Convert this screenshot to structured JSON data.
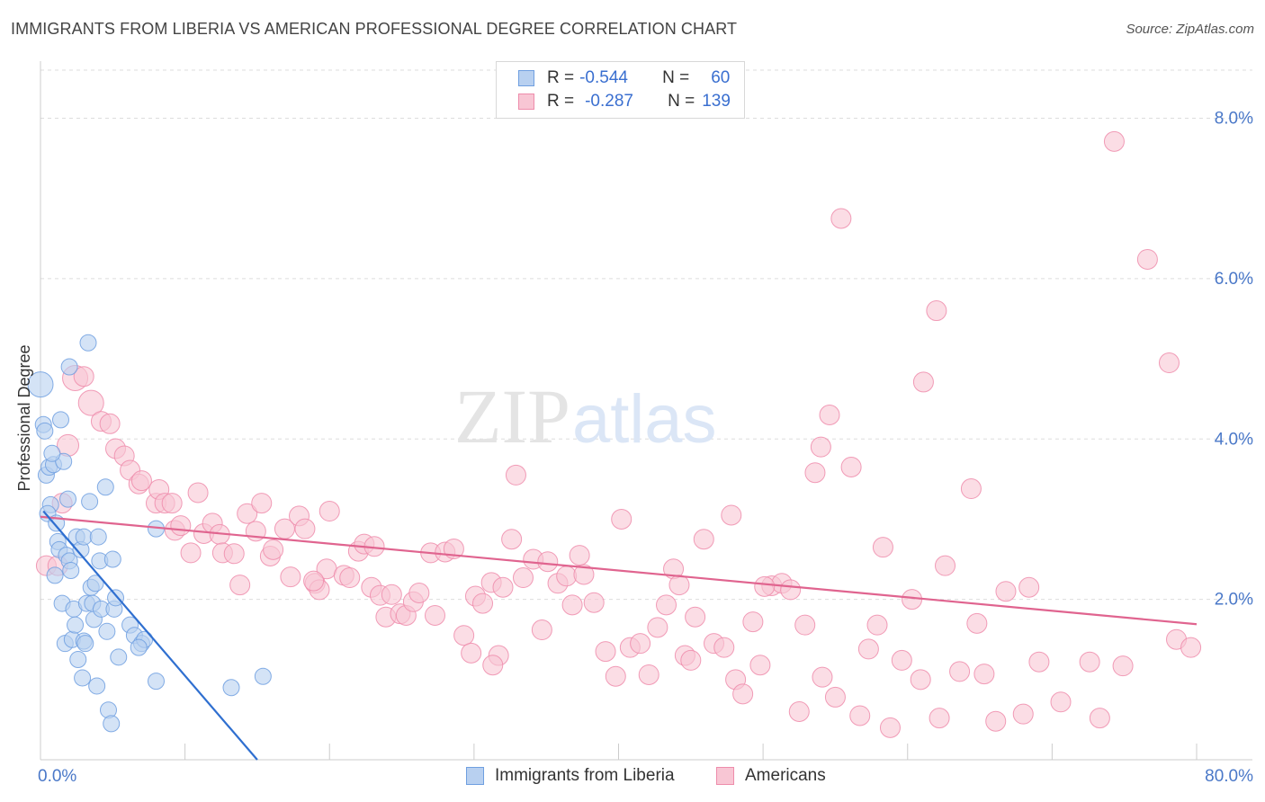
{
  "title": "IMMIGRANTS FROM LIBERIA VS AMERICAN PROFESSIONAL DEGREE CORRELATION CHART",
  "source": "Source: ZipAtlas.com",
  "watermark": {
    "zip": "ZIP",
    "atlas": "atlas"
  },
  "legend": {
    "rows": [
      {
        "r_label": "R =",
        "r_value": "-0.544",
        "n_label": "N =",
        "n_value": "60"
      },
      {
        "r_label": "R =",
        "r_value": "-0.287",
        "n_label": "N =",
        "n_value": "139"
      }
    ],
    "bottom": [
      "Immigrants from Liberia",
      "Americans"
    ]
  },
  "colors": {
    "liberia_fill": "#b8d0f0",
    "liberia_stroke": "#6f9fe0",
    "liberia_line": "#2f6fd0",
    "americans_fill": "#f8c6d4",
    "americans_stroke": "#ee8cab",
    "americans_line": "#e0648f",
    "axis_text": "#4a78c8",
    "grid": "#dddddd"
  },
  "chart_data": {
    "type": "scatter",
    "title": "IMMIGRANTS FROM LIBERIA VS AMERICAN PROFESSIONAL DEGREE CORRELATION CHART",
    "xlabel": "",
    "ylabel": "Professional Degree",
    "xlim": [
      0,
      80
    ],
    "ylim": [
      0,
      8.6
    ],
    "x_tick_labels": [
      "0.0%",
      "80.0%"
    ],
    "y_ticks": [
      2,
      4,
      6,
      8
    ],
    "y_tick_labels": [
      "2.0%",
      "4.0%",
      "6.0%",
      "8.0%"
    ],
    "series": [
      {
        "name": "Immigrants from Liberia",
        "R": -0.544,
        "N": 60,
        "trend": {
          "x0": 0.2,
          "y0": 3.1,
          "x1": 15.0,
          "y1": 0.0
        },
        "points": [
          [
            0.0,
            4.68,
            14
          ],
          [
            0.2,
            4.18,
            9
          ],
          [
            0.3,
            4.1,
            9
          ],
          [
            0.4,
            3.55,
            9
          ],
          [
            0.6,
            3.65,
            9
          ],
          [
            0.7,
            3.18,
            9
          ],
          [
            0.9,
            3.68,
            9
          ],
          [
            1.0,
            2.3,
            9
          ],
          [
            1.2,
            2.72,
            9
          ],
          [
            1.3,
            2.62,
            9
          ],
          [
            1.4,
            4.24,
            9
          ],
          [
            1.5,
            1.95,
            9
          ],
          [
            1.6,
            3.72,
            9
          ],
          [
            1.7,
            1.45,
            9
          ],
          [
            1.8,
            2.55,
            9
          ],
          [
            1.9,
            3.25,
            9
          ],
          [
            2.0,
            2.48,
            9
          ],
          [
            2.0,
            4.9,
            9
          ],
          [
            2.2,
            1.5,
            9
          ],
          [
            2.3,
            1.88,
            9
          ],
          [
            2.4,
            1.68,
            9
          ],
          [
            2.5,
            2.78,
            9
          ],
          [
            2.6,
            1.25,
            9
          ],
          [
            2.8,
            2.62,
            9
          ],
          [
            2.9,
            1.02,
            9
          ],
          [
            3.0,
            1.48,
            9
          ],
          [
            3.0,
            2.78,
            9
          ],
          [
            3.1,
            1.45,
            9
          ],
          [
            3.2,
            1.95,
            9
          ],
          [
            3.3,
            5.2,
            9
          ],
          [
            3.4,
            3.22,
            9
          ],
          [
            3.5,
            2.15,
            9
          ],
          [
            3.6,
            1.95,
            9
          ],
          [
            3.7,
            1.75,
            9
          ],
          [
            3.9,
            0.92,
            9
          ],
          [
            4.0,
            2.78,
            9
          ],
          [
            4.1,
            2.48,
            9
          ],
          [
            4.2,
            1.88,
            9
          ],
          [
            4.5,
            3.4,
            9
          ],
          [
            4.6,
            1.6,
            9
          ],
          [
            4.7,
            0.62,
            9
          ],
          [
            4.9,
            0.45,
            9
          ],
          [
            5.0,
            2.5,
            9
          ],
          [
            5.1,
            1.88,
            9
          ],
          [
            5.2,
            2.02,
            9
          ],
          [
            5.4,
            1.28,
            9
          ],
          [
            6.2,
            1.68,
            9
          ],
          [
            6.5,
            1.55,
            9
          ],
          [
            7.0,
            1.45,
            9
          ],
          [
            7.2,
            1.5,
            9
          ],
          [
            8.0,
            2.88,
            9
          ],
          [
            8.0,
            0.98,
            9
          ],
          [
            13.2,
            0.9,
            9
          ],
          [
            15.4,
            1.04,
            9
          ],
          [
            0.5,
            3.07,
            9
          ],
          [
            1.1,
            2.95,
            9
          ],
          [
            2.1,
            2.36,
            9
          ],
          [
            3.8,
            2.2,
            9
          ],
          [
            6.8,
            1.4,
            9
          ],
          [
            0.8,
            3.82,
            9
          ]
        ]
      },
      {
        "name": "Americans",
        "R": -0.287,
        "N": 139,
        "trend": {
          "x0": 0.0,
          "y0": 3.03,
          "x1": 80.0,
          "y1": 1.69
        },
        "points": [
          [
            0.4,
            2.42,
            11
          ],
          [
            1.2,
            2.42,
            11
          ],
          [
            1.5,
            3.2,
            11
          ],
          [
            2.4,
            4.76,
            14
          ],
          [
            3.0,
            4.78,
            11
          ],
          [
            3.5,
            4.45,
            14
          ],
          [
            4.2,
            4.22,
            11
          ],
          [
            4.8,
            4.19,
            11
          ],
          [
            1.9,
            3.92,
            12
          ],
          [
            5.2,
            3.88,
            11
          ],
          [
            5.8,
            3.79,
            11
          ],
          [
            6.2,
            3.61,
            11
          ],
          [
            6.8,
            3.44,
            11
          ],
          [
            7.0,
            3.48,
            11
          ],
          [
            8.0,
            3.2,
            11
          ],
          [
            8.2,
            3.37,
            11
          ],
          [
            8.6,
            3.2,
            11
          ],
          [
            9.3,
            2.86,
            11
          ],
          [
            9.7,
            2.92,
            11
          ],
          [
            10.4,
            2.58,
            11
          ],
          [
            10.9,
            3.33,
            11
          ],
          [
            11.3,
            2.82,
            11
          ],
          [
            11.9,
            2.95,
            11
          ],
          [
            12.4,
            2.81,
            11
          ],
          [
            12.6,
            2.58,
            11
          ],
          [
            13.4,
            2.57,
            11
          ],
          [
            13.8,
            2.18,
            11
          ],
          [
            14.3,
            3.07,
            11
          ],
          [
            14.9,
            2.85,
            11
          ],
          [
            15.3,
            3.2,
            11
          ],
          [
            15.9,
            2.54,
            11
          ],
          [
            16.1,
            2.62,
            11
          ],
          [
            16.9,
            2.88,
            11
          ],
          [
            17.3,
            2.28,
            11
          ],
          [
            17.9,
            3.04,
            11
          ],
          [
            18.3,
            2.88,
            11
          ],
          [
            19.0,
            2.2,
            11
          ],
          [
            19.3,
            2.12,
            11
          ],
          [
            19.8,
            2.38,
            11
          ],
          [
            20.0,
            3.1,
            11
          ],
          [
            21.0,
            2.3,
            11
          ],
          [
            21.4,
            2.27,
            11
          ],
          [
            22.0,
            2.6,
            11
          ],
          [
            22.4,
            2.69,
            11
          ],
          [
            22.9,
            2.15,
            11
          ],
          [
            23.1,
            2.66,
            11
          ],
          [
            23.5,
            2.05,
            11
          ],
          [
            23.9,
            1.78,
            11
          ],
          [
            24.3,
            2.06,
            11
          ],
          [
            24.9,
            1.82,
            11
          ],
          [
            25.3,
            1.8,
            11
          ],
          [
            25.8,
            1.97,
            11
          ],
          [
            26.2,
            2.08,
            11
          ],
          [
            27.0,
            2.58,
            11
          ],
          [
            27.3,
            1.8,
            11
          ],
          [
            28.0,
            2.59,
            11
          ],
          [
            28.6,
            2.63,
            11
          ],
          [
            29.3,
            1.55,
            11
          ],
          [
            29.8,
            1.33,
            11
          ],
          [
            30.1,
            2.04,
            11
          ],
          [
            30.6,
            1.95,
            11
          ],
          [
            31.2,
            2.21,
            11
          ],
          [
            31.7,
            1.3,
            11
          ],
          [
            32.0,
            2.15,
            11
          ],
          [
            32.6,
            2.75,
            11
          ],
          [
            32.9,
            3.55,
            11
          ],
          [
            33.4,
            2.27,
            11
          ],
          [
            34.1,
            2.5,
            11
          ],
          [
            34.7,
            1.62,
            11
          ],
          [
            35.1,
            2.47,
            11
          ],
          [
            35.8,
            2.2,
            11
          ],
          [
            36.4,
            2.29,
            11
          ],
          [
            37.3,
            2.55,
            11
          ],
          [
            37.6,
            2.31,
            11
          ],
          [
            38.3,
            1.96,
            11
          ],
          [
            39.1,
            1.35,
            11
          ],
          [
            39.8,
            1.04,
            11
          ],
          [
            40.2,
            3.0,
            11
          ],
          [
            40.8,
            1.4,
            11
          ],
          [
            41.5,
            1.45,
            11
          ],
          [
            42.1,
            1.06,
            11
          ],
          [
            42.7,
            1.65,
            11
          ],
          [
            43.3,
            1.93,
            11
          ],
          [
            43.8,
            2.38,
            11
          ],
          [
            44.2,
            2.18,
            11
          ],
          [
            44.6,
            1.3,
            11
          ],
          [
            45.0,
            1.24,
            11
          ],
          [
            45.3,
            1.78,
            11
          ],
          [
            45.9,
            2.75,
            11
          ],
          [
            46.6,
            1.45,
            11
          ],
          [
            47.3,
            1.4,
            11
          ],
          [
            47.8,
            3.05,
            11
          ],
          [
            48.1,
            1.0,
            11
          ],
          [
            48.6,
            0.82,
            11
          ],
          [
            49.3,
            1.72,
            11
          ],
          [
            49.8,
            1.18,
            11
          ],
          [
            50.6,
            2.17,
            11
          ],
          [
            51.3,
            2.2,
            11
          ],
          [
            51.9,
            2.12,
            11
          ],
          [
            52.5,
            0.6,
            11
          ],
          [
            52.9,
            1.68,
            11
          ],
          [
            53.6,
            3.58,
            11
          ],
          [
            54.1,
            1.03,
            11
          ],
          [
            54.6,
            4.3,
            11
          ],
          [
            55.0,
            0.78,
            11
          ],
          [
            55.4,
            6.75,
            11
          ],
          [
            56.1,
            3.65,
            11
          ],
          [
            56.7,
            0.55,
            11
          ],
          [
            57.3,
            1.38,
            11
          ],
          [
            57.9,
            1.68,
            11
          ],
          [
            58.3,
            2.65,
            11
          ],
          [
            58.8,
            0.4,
            11
          ],
          [
            59.6,
            1.24,
            11
          ],
          [
            60.9,
            1.0,
            11
          ],
          [
            61.1,
            4.71,
            11
          ],
          [
            62.0,
            5.6,
            11
          ],
          [
            62.2,
            0.52,
            11
          ],
          [
            62.6,
            2.42,
            11
          ],
          [
            63.6,
            1.1,
            11
          ],
          [
            64.4,
            3.38,
            11
          ],
          [
            64.8,
            1.7,
            11
          ],
          [
            65.3,
            1.07,
            11
          ],
          [
            66.1,
            0.48,
            11
          ],
          [
            66.8,
            2.1,
            11
          ],
          [
            68.0,
            0.57,
            11
          ],
          [
            68.4,
            2.15,
            11
          ],
          [
            69.1,
            1.22,
            11
          ],
          [
            70.6,
            0.72,
            11
          ],
          [
            72.6,
            1.22,
            11
          ],
          [
            73.3,
            0.52,
            11
          ],
          [
            74.3,
            7.71,
            11
          ],
          [
            74.9,
            1.17,
            11
          ],
          [
            76.6,
            6.24,
            11
          ],
          [
            78.1,
            4.95,
            11
          ],
          [
            78.6,
            1.5,
            11
          ],
          [
            79.6,
            1.4,
            11
          ],
          [
            54.0,
            3.9,
            11
          ],
          [
            36.8,
            1.93,
            11
          ],
          [
            18.9,
            2.23,
            11
          ],
          [
            9.1,
            3.2,
            11
          ],
          [
            31.3,
            1.18,
            11
          ],
          [
            60.3,
            2.0,
            11
          ],
          [
            50.1,
            2.16,
            11
          ]
        ]
      }
    ]
  }
}
